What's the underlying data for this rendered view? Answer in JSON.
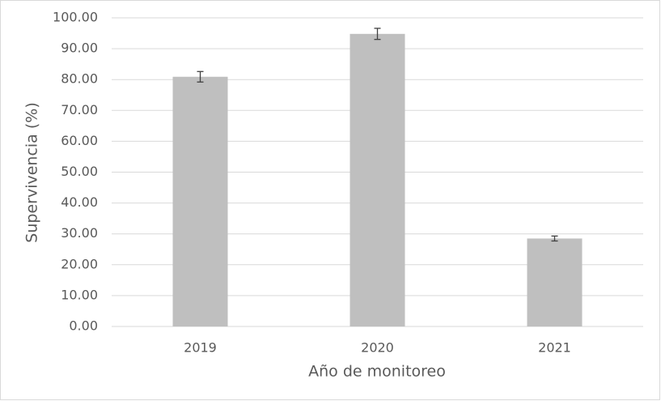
{
  "chart_data": {
    "type": "bar",
    "categories": [
      "2019",
      "2020",
      "2021"
    ],
    "values": [
      80.9,
      94.8,
      28.5
    ],
    "errors": [
      1.7,
      1.8,
      0.8
    ],
    "color": "#bfbfbf",
    "ylabel": "Supervivencia (%)",
    "xlabel": "Año de monitoreo",
    "ylim": [
      0,
      100
    ],
    "yticks": [
      {
        "value": 0,
        "label": "0.00"
      },
      {
        "value": 10,
        "label": "10.00"
      },
      {
        "value": 20,
        "label": "20.00"
      },
      {
        "value": 30,
        "label": "30.00"
      },
      {
        "value": 40,
        "label": "40.00"
      },
      {
        "value": 50,
        "label": "50.00"
      },
      {
        "value": 60,
        "label": "60.00"
      },
      {
        "value": 70,
        "label": "70.00"
      },
      {
        "value": 80,
        "label": "80.00"
      },
      {
        "value": 90,
        "label": "90.00"
      },
      {
        "value": 100,
        "label": "100.00"
      }
    ],
    "grid": true
  }
}
